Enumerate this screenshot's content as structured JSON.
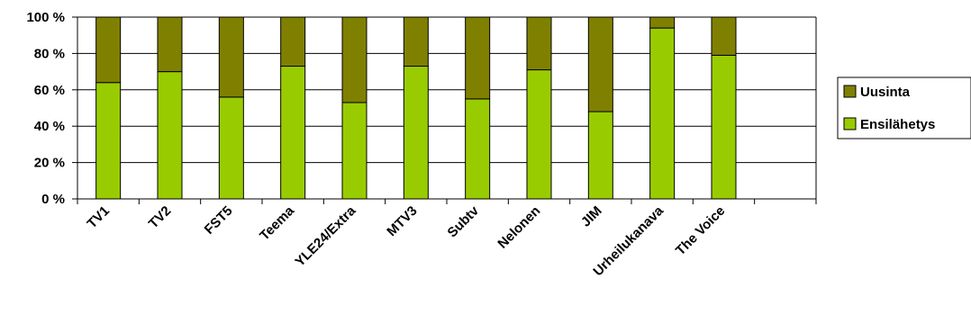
{
  "chart_data": {
    "type": "bar",
    "stacked": true,
    "percent": true,
    "categories": [
      "TV1",
      "TV2",
      "FST5",
      "Teema",
      "YLE24/Extra",
      "MTV3",
      "Subtv",
      "Nelonen",
      "JIM",
      "Urheilukanava",
      "The Voice"
    ],
    "series": [
      {
        "name": "Ensilähetys",
        "color": "#99cc00",
        "values": [
          64,
          70,
          56,
          73,
          53,
          73,
          55,
          71,
          48,
          94,
          79
        ]
      },
      {
        "name": "Uusinta",
        "color": "#808000",
        "values": [
          36,
          30,
          44,
          27,
          47,
          27,
          45,
          29,
          52,
          6,
          21
        ]
      }
    ],
    "ylim": [
      0,
      100
    ],
    "yticks": [
      "0 %",
      "20 %",
      "40 %",
      "60 %",
      "80 %",
      "100 %"
    ],
    "grid": true,
    "legend_position": "right",
    "legend_order": [
      "Uusinta",
      "Ensilähetys"
    ]
  }
}
